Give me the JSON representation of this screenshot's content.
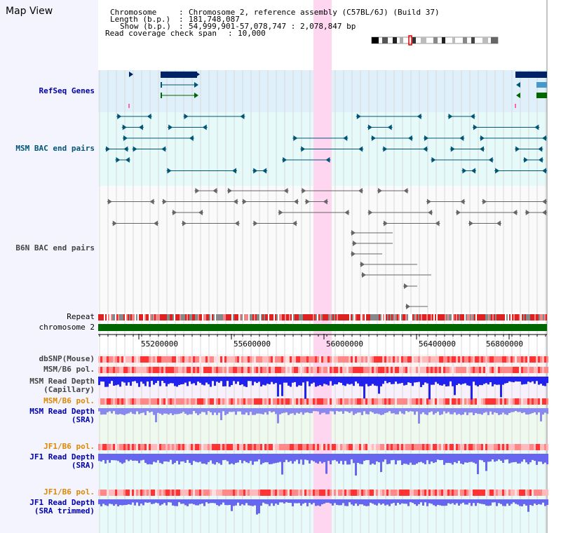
{
  "header": {
    "title": "Map View",
    "info_rows": [
      {
        "label": "Chromosome",
        "value": "Chromosome 2, reference assembly (C57BL/6J) (Build 37)"
      },
      {
        "label": "Length (b.p.)",
        "value": "181,748,087"
      },
      {
        "label": "Show (b.p.)",
        "value": "54,999,901-57,078,747 : 2,078,847 bp"
      },
      {
        "label": "Read coverage check span",
        "value": "10,000"
      }
    ]
  },
  "tracks": {
    "refseq": "RefSeq Genes",
    "msm_bac": "MSM BAC end pairs",
    "b6n_bac": "B6N BAC end pairs",
    "repeat": "Repeat",
    "chromosome": "chromosome 2",
    "dbsnp": "dbSNP(Mouse)",
    "msm_b6_pol": "MSM/B6 pol.",
    "msm_depth_cap": "MSM Read Depth\n(Capillary)",
    "msm_b6_pol_2": "MSM/B6 pol.",
    "msm_depth_sra": "MSM Read Depth\n(SRA)",
    "jf1_b6_pol": "JF1/B6 pol.",
    "jf1_depth_sra": "JF1 Read Depth\n(SRA)",
    "jf1_b6_pol_2": "JF1/B6 pol.",
    "jf1_depth_trim": "JF1 Read Depth\n(SRA trimmed)"
  },
  "axis": {
    "ticks": [
      "55200000",
      "55600000",
      "56000000",
      "56400000",
      "56800000"
    ]
  },
  "colors": {
    "refseq_label": "#0000aa",
    "msm_label": "#005577",
    "b6n_label": "#444444",
    "black_label": "#000000",
    "orange_label": "#dd8800",
    "blue_label": "#0000aa",
    "highlight": "#ffd6f0",
    "chromosome_bar": "#006600"
  }
}
